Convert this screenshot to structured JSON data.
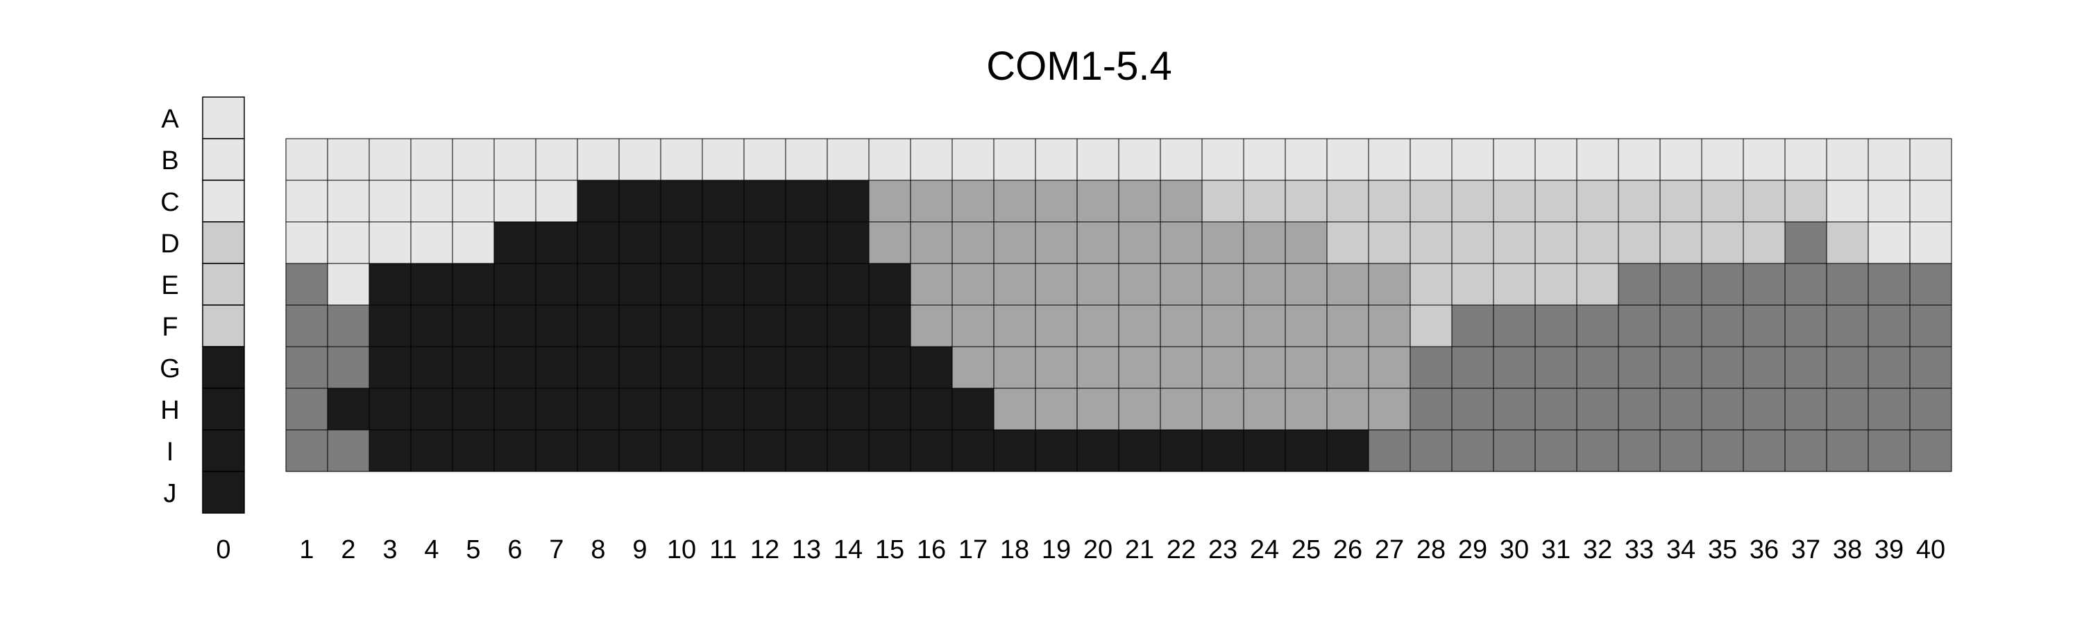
{
  "chart_data": {
    "type": "heatmap",
    "title": "COM1-5.4",
    "row_labels": [
      "A",
      "B",
      "C",
      "D",
      "E",
      "F",
      "G",
      "H",
      "I",
      "J"
    ],
    "left_column": {
      "label": "0",
      "values": [
        1,
        1,
        1,
        2,
        2,
        2,
        5,
        5,
        5,
        5
      ]
    },
    "column_labels": [
      "1",
      "2",
      "3",
      "4",
      "5",
      "6",
      "7",
      "8",
      "9",
      "10",
      "11",
      "12",
      "13",
      "14",
      "15",
      "16",
      "17",
      "18",
      "19",
      "20",
      "21",
      "22",
      "23",
      "24",
      "25",
      "26",
      "27",
      "28",
      "29",
      "30",
      "31",
      "32",
      "33",
      "34",
      "35",
      "36",
      "37",
      "38",
      "39",
      "40"
    ],
    "grid_rows": [
      "B",
      "C",
      "D",
      "E",
      "F",
      "G",
      "H",
      "I"
    ],
    "grid_values": [
      [
        1,
        1,
        1,
        1,
        1,
        1,
        1,
        1,
        1,
        1,
        1,
        1,
        1,
        1,
        1,
        1,
        1,
        1,
        1,
        1,
        1,
        1,
        1,
        1,
        1,
        1,
        1,
        1,
        1,
        1,
        1,
        1,
        1,
        1,
        1,
        1,
        1,
        1,
        1,
        1
      ],
      [
        1,
        1,
        1,
        1,
        1,
        1,
        1,
        5,
        5,
        5,
        5,
        5,
        5,
        5,
        3,
        3,
        3,
        3,
        3,
        3,
        3,
        3,
        2,
        2,
        2,
        2,
        2,
        2,
        2,
        2,
        2,
        2,
        2,
        2,
        2,
        2,
        2,
        1,
        1,
        1
      ],
      [
        1,
        1,
        1,
        1,
        1,
        5,
        5,
        5,
        5,
        5,
        5,
        5,
        5,
        5,
        3,
        3,
        3,
        3,
        3,
        3,
        3,
        3,
        3,
        3,
        3,
        2,
        2,
        2,
        2,
        2,
        2,
        2,
        2,
        2,
        2,
        2,
        4,
        2,
        1,
        1
      ],
      [
        4,
        1,
        5,
        5,
        5,
        5,
        5,
        5,
        5,
        5,
        5,
        5,
        5,
        5,
        5,
        3,
        3,
        3,
        3,
        3,
        3,
        3,
        3,
        3,
        3,
        3,
        3,
        2,
        2,
        2,
        2,
        2,
        4,
        4,
        4,
        4,
        4,
        4,
        4,
        4
      ],
      [
        4,
        4,
        5,
        5,
        5,
        5,
        5,
        5,
        5,
        5,
        5,
        5,
        5,
        5,
        5,
        3,
        3,
        3,
        3,
        3,
        3,
        3,
        3,
        3,
        3,
        3,
        3,
        2,
        4,
        4,
        4,
        4,
        4,
        4,
        4,
        4,
        4,
        4,
        4,
        4
      ],
      [
        4,
        4,
        5,
        5,
        5,
        5,
        5,
        5,
        5,
        5,
        5,
        5,
        5,
        5,
        5,
        5,
        3,
        3,
        3,
        3,
        3,
        3,
        3,
        3,
        3,
        3,
        3,
        4,
        4,
        4,
        4,
        4,
        4,
        4,
        4,
        4,
        4,
        4,
        4,
        4
      ],
      [
        4,
        5,
        5,
        5,
        5,
        5,
        5,
        5,
        5,
        5,
        5,
        5,
        5,
        5,
        5,
        5,
        5,
        3,
        3,
        3,
        3,
        3,
        3,
        3,
        3,
        3,
        3,
        4,
        4,
        4,
        4,
        4,
        4,
        4,
        4,
        4,
        4,
        4,
        4,
        4
      ],
      [
        4,
        4,
        5,
        5,
        5,
        5,
        5,
        5,
        5,
        5,
        5,
        5,
        5,
        5,
        5,
        5,
        5,
        5,
        5,
        5,
        5,
        5,
        5,
        5,
        5,
        5,
        4,
        4,
        4,
        4,
        4,
        4,
        4,
        4,
        4,
        4,
        4,
        4,
        4,
        4
      ]
    ],
    "value_colors": {
      "1": "#e6e6e6",
      "2": "#cccccc",
      "3": "#a5a5a5",
      "4": "#7c7c7c",
      "5": "#1a1a1a"
    },
    "grid": true,
    "legend": "none"
  }
}
